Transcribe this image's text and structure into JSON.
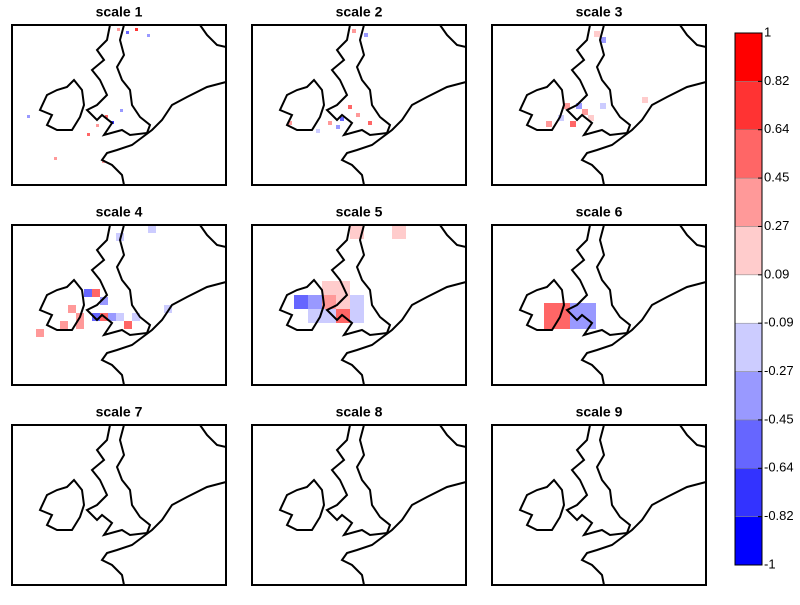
{
  "panels": [
    {
      "title": "scale 1",
      "cells": [
        {
          "col": 35,
          "row": 1,
          "value": 0.3
        },
        {
          "col": 38,
          "row": 2,
          "value": -0.5
        },
        {
          "col": 41,
          "row": 1,
          "value": 0.7
        },
        {
          "col": 45,
          "row": 3,
          "value": -0.3
        },
        {
          "col": 31,
          "row": 30,
          "value": 0.5
        },
        {
          "col": 33,
          "row": 32,
          "value": -0.7
        },
        {
          "col": 28,
          "row": 33,
          "value": 0.3
        },
        {
          "col": 36,
          "row": 28,
          "value": -0.4
        },
        {
          "col": 25,
          "row": 36,
          "value": 0.6
        },
        {
          "col": 14,
          "row": 44,
          "value": 0.4
        },
        {
          "col": 5,
          "row": 30,
          "value": -0.3
        },
        {
          "col": 30,
          "row": 45,
          "value": 0.3
        }
      ]
    },
    {
      "title": "scale 2",
      "cells": [
        {
          "col": 25,
          "row": 1,
          "value": 0.3
        },
        {
          "col": 28,
          "row": 2,
          "value": -0.4
        },
        {
          "col": 24,
          "row": 20,
          "value": 0.5
        },
        {
          "col": 22,
          "row": 23,
          "value": -0.5
        },
        {
          "col": 26,
          "row": 22,
          "value": 0.3
        },
        {
          "col": 19,
          "row": 24,
          "value": 0.4
        },
        {
          "col": 21,
          "row": 25,
          "value": -0.3
        },
        {
          "col": 9,
          "row": 24,
          "value": 0.3
        },
        {
          "col": 16,
          "row": 26,
          "value": -0.2
        },
        {
          "col": 29,
          "row": 24,
          "value": 0.5
        }
      ]
    },
    {
      "title": "scale 3",
      "cells": [
        {
          "col": 17,
          "row": 1,
          "value": 0.2
        },
        {
          "col": 18,
          "row": 2,
          "value": -0.3
        },
        {
          "col": 12,
          "row": 13,
          "value": 0.3
        },
        {
          "col": 14,
          "row": 13,
          "value": -0.4
        },
        {
          "col": 15,
          "row": 14,
          "value": 0.4
        },
        {
          "col": 11,
          "row": 15,
          "value": -0.2
        },
        {
          "col": 13,
          "row": 16,
          "value": 0.5
        },
        {
          "col": 16,
          "row": 15,
          "value": 0.2
        },
        {
          "col": 9,
          "row": 16,
          "value": 0.3
        },
        {
          "col": 18,
          "row": 13,
          "value": -0.2
        },
        {
          "col": 25,
          "row": 12,
          "value": 0.2
        }
      ]
    },
    {
      "title": "scale 4",
      "cells": [
        {
          "col": 13,
          "row": 1,
          "value": -0.2
        },
        {
          "col": 17,
          "row": 0,
          "value": -0.2
        },
        {
          "col": 9,
          "row": 8,
          "value": -0.5
        },
        {
          "col": 10,
          "row": 8,
          "value": 0.6
        },
        {
          "col": 11,
          "row": 9,
          "value": -0.3
        },
        {
          "col": 7,
          "row": 10,
          "value": 0.3
        },
        {
          "col": 8,
          "row": 11,
          "value": 0.4
        },
        {
          "col": 10,
          "row": 11,
          "value": -0.6
        },
        {
          "col": 11,
          "row": 11,
          "value": 0.5
        },
        {
          "col": 12,
          "row": 11,
          "value": -0.4
        },
        {
          "col": 13,
          "row": 11,
          "value": -0.2
        },
        {
          "col": 6,
          "row": 12,
          "value": 0.3
        },
        {
          "col": 8,
          "row": 12,
          "value": 0.4
        },
        {
          "col": 14,
          "row": 12,
          "value": 0.5
        },
        {
          "col": 15,
          "row": 11,
          "value": -0.2
        },
        {
          "col": 19,
          "row": 10,
          "value": -0.2
        },
        {
          "col": 3,
          "row": 13,
          "value": 0.3
        }
      ]
    },
    {
      "title": "scale 5",
      "cells": [
        {
          "col": 7,
          "row": 0,
          "value": 0.2
        },
        {
          "col": 10,
          "row": 0,
          "value": 0.2
        },
        {
          "col": 3,
          "row": 5,
          "value": -0.5
        },
        {
          "col": 4,
          "row": 5,
          "value": -0.3
        },
        {
          "col": 5,
          "row": 4,
          "value": 0.2
        },
        {
          "col": 6,
          "row": 4,
          "value": 0.2
        },
        {
          "col": 5,
          "row": 5,
          "value": 0.3
        },
        {
          "col": 6,
          "row": 5,
          "value": 0.2
        },
        {
          "col": 7,
          "row": 5,
          "value": -0.2
        },
        {
          "col": 4,
          "row": 6,
          "value": -0.2
        },
        {
          "col": 5,
          "row": 6,
          "value": -0.2
        },
        {
          "col": 6,
          "row": 6,
          "value": 0.5
        },
        {
          "col": 7,
          "row": 6,
          "value": -0.1
        }
      ]
    },
    {
      "title": "scale 6",
      "cells": [
        {
          "col": 2,
          "row": 3,
          "value": 0.6
        },
        {
          "col": 3,
          "row": 3,
          "value": -0.4
        }
      ]
    },
    {
      "title": "scale 7",
      "cells": []
    },
    {
      "title": "scale 8",
      "cells": []
    },
    {
      "title": "scale 9",
      "cells": []
    }
  ],
  "colorbar": {
    "ticks": [
      -1,
      -0.82,
      -0.64,
      -0.45,
      -0.27,
      -0.09,
      0.09,
      0.27,
      0.45,
      0.64,
      0.82,
      1
    ],
    "colors": [
      "#0000ff",
      "#3333ff",
      "#6666ff",
      "#9999ff",
      "#ccccff",
      "#ffffff",
      "#ffcccc",
      "#ff9999",
      "#ff6666",
      "#ff3333",
      "#ff0000"
    ]
  }
}
